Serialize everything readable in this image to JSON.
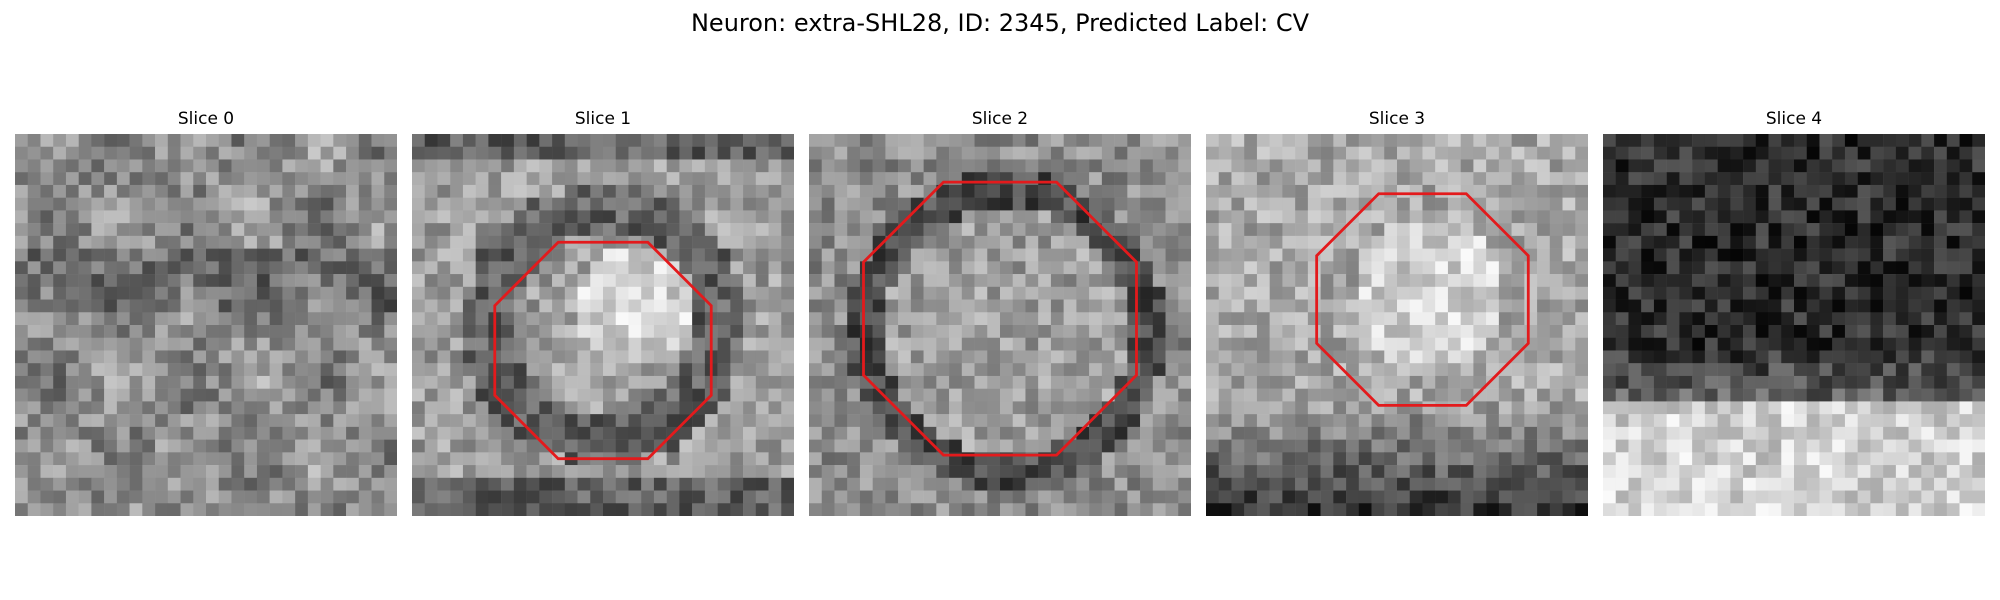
{
  "figure": {
    "title": "Neuron: extra-SHL28, ID: 2345, Predicted Label: CV"
  },
  "slices": [
    {
      "label": "Slice 0",
      "contour": false
    },
    {
      "label": "Slice 1",
      "contour": true
    },
    {
      "label": "Slice 2",
      "contour": true
    },
    {
      "label": "Slice 3",
      "contour": true
    },
    {
      "label": "Slice 4",
      "contour": false
    }
  ],
  "colors": {
    "contour": "#e31a1c",
    "background": "#ffffff"
  }
}
